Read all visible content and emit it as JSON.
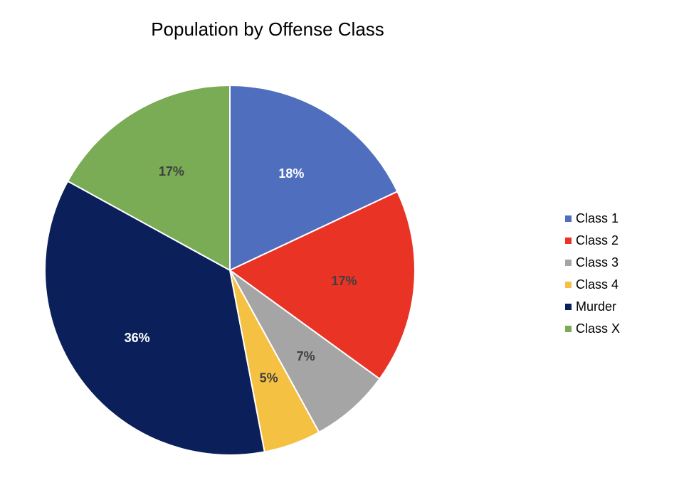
{
  "chart_data": {
    "type": "pie",
    "title": "Population by Offense Class",
    "categories": [
      "Class 1",
      "Class 2",
      "Class 3",
      "Class 4",
      "Murder",
      "Class X"
    ],
    "values": [
      18,
      17,
      7,
      5,
      36,
      17
    ],
    "data_labels": [
      "18%",
      "17%",
      "7%",
      "5%",
      "36%",
      "17%"
    ],
    "colors": [
      "#4F6FBE",
      "#E83325",
      "#A5A5A5",
      "#F5C143",
      "#0B1F5A",
      "#7AAB55"
    ],
    "label_colors": [
      "#FFFFFF",
      "#404040",
      "#404040",
      "#404040",
      "#FFFFFF",
      "#404040"
    ],
    "legend_position": "right",
    "start_angle_degrees": 0,
    "direction": "clockwise"
  }
}
